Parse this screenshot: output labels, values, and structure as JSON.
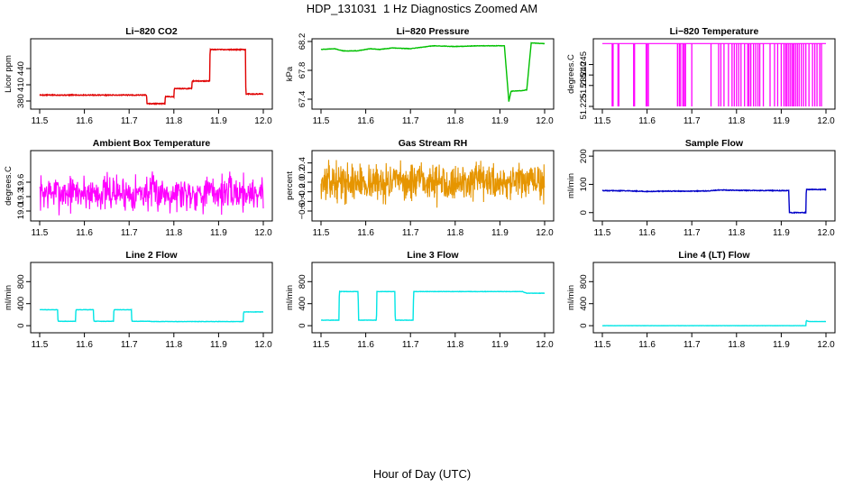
{
  "figure": {
    "title": "HDP_131031  1 Hz Diagnostics Zoomed AM",
    "xlabel": "Hour of Day (UTC)"
  },
  "chart_data": [
    {
      "type": "line",
      "title": "Li−820 CO2",
      "ylabel": "Licor ppm",
      "xlim": [
        11.5,
        12.0
      ],
      "ylim": [
        370,
        490
      ],
      "xticks": [
        "11.5",
        "11.6",
        "11.7",
        "11.8",
        "11.9",
        "12.0"
      ],
      "yticks": [
        {
          "v": 380,
          "label": "380"
        },
        {
          "v": 410,
          "label": "410"
        },
        {
          "v": 440,
          "label": "440"
        }
      ],
      "color": "#e00000",
      "noise": 0.8,
      "series": [
        {
          "x": [
            11.5,
            11.739,
            11.74,
            11.78,
            11.781,
            11.8,
            11.801,
            11.84,
            11.841,
            11.88,
            11.881,
            11.96,
            11.961,
            12.0
          ],
          "y": [
            391,
            391,
            375,
            375,
            388,
            388,
            403,
            403,
            417,
            417,
            475,
            475,
            393,
            393
          ]
        }
      ]
    },
    {
      "type": "line",
      "title": "Li−820 Pressure",
      "ylabel": "kPa",
      "xlim": [
        11.5,
        12.0
      ],
      "ylim": [
        67.3,
        68.2
      ],
      "xticks": [
        "11.5",
        "11.6",
        "11.7",
        "11.8",
        "11.9",
        "12.0"
      ],
      "yticks": [
        {
          "v": 67.4,
          "label": "67.4"
        },
        {
          "v": 67.8,
          "label": "67.8"
        },
        {
          "v": 68.2,
          "label": "68.2"
        }
      ],
      "color": "#00c000",
      "noise": 0.003,
      "series": [
        {
          "x": [
            11.5,
            11.53,
            11.55,
            11.58,
            11.61,
            11.63,
            11.66,
            11.7,
            11.75,
            11.8,
            11.85,
            11.91,
            11.92,
            11.925,
            11.95,
            11.96,
            11.97,
            12.0
          ],
          "y": [
            68.09,
            68.1,
            68.07,
            68.07,
            68.1,
            68.09,
            68.11,
            68.1,
            68.14,
            68.13,
            68.14,
            68.14,
            67.37,
            67.51,
            67.52,
            67.53,
            68.18,
            68.17
          ]
        }
      ]
    },
    {
      "type": "line",
      "title": "Li−820 Temperature",
      "ylabel": "degrees.C",
      "xlim": [
        11.5,
        12.0
      ],
      "ylim": [
        51.225,
        51.256
      ],
      "xticks": [
        "11.5",
        "11.6",
        "11.7",
        "11.8",
        "11.9",
        "12.0"
      ],
      "yticks": [
        {
          "v": 51.225,
          "label": "51.225"
        },
        {
          "v": 51.235,
          "label": "51.235"
        },
        {
          "v": 51.24,
          "label": "51.240"
        },
        {
          "v": 51.245,
          "label": "51.245"
        }
      ],
      "color": "#ff00ff",
      "base": 51.255,
      "drop": 51.225,
      "spikes": [
        11.522,
        11.524,
        11.535,
        11.537,
        11.57,
        11.572,
        11.598,
        11.6,
        11.603,
        11.668,
        11.672,
        11.675,
        11.68,
        11.683,
        11.686,
        11.7,
        11.743,
        11.76,
        11.765,
        11.772,
        11.782,
        11.79,
        11.795,
        11.8,
        11.805,
        11.81,
        11.818,
        11.825,
        11.828,
        11.832,
        11.838,
        11.843,
        11.848,
        11.852,
        11.86,
        11.875,
        11.885,
        11.892,
        11.9,
        11.906,
        11.91,
        11.913,
        11.917,
        11.921,
        11.925,
        11.928,
        11.932,
        11.936,
        11.94,
        11.945,
        11.95,
        11.955,
        11.962,
        11.97,
        11.975,
        11.98,
        11.986,
        11.99
      ]
    },
    {
      "type": "line",
      "title": "Ambient Box Temperature",
      "ylabel": "degrees.C",
      "xlim": [
        11.5,
        12.0
      ],
      "ylim": [
        18.85,
        20.2
      ],
      "xticks": [
        "11.5",
        "11.6",
        "11.7",
        "11.8",
        "11.9",
        "12.0"
      ],
      "yticks": [
        {
          "v": 19.0,
          "label": "19.0"
        },
        {
          "v": 19.3,
          "label": "19.3"
        },
        {
          "v": 19.6,
          "label": "19.6"
        }
      ],
      "color": "#ff00ff",
      "noise_center": 19.38,
      "noise_amp": 0.55,
      "noise_count": 520,
      "noise_seed": 7
    },
    {
      "type": "line",
      "title": "Gas Stream RH",
      "ylabel": "percent",
      "xlim": [
        11.5,
        12.0
      ],
      "ylim": [
        -0.75,
        0.6
      ],
      "xticks": [
        "11.5",
        "11.6",
        "11.7",
        "11.8",
        "11.9",
        "12.0"
      ],
      "yticks": [
        {
          "v": -0.6,
          "label": "−0.6"
        },
        {
          "v": -0.4,
          "label": "−0.4"
        },
        {
          "v": -0.2,
          "label": "−0.2"
        },
        {
          "v": 0.0,
          "label": "0.0"
        },
        {
          "v": 0.2,
          "label": "0.2"
        },
        {
          "v": 0.4,
          "label": "0.4"
        }
      ],
      "color": "#e69500",
      "noise_center": 0.0,
      "noise_amp": 0.55,
      "noise_count": 700,
      "noise_seed": 13
    },
    {
      "type": "line",
      "title": "Sample Flow",
      "ylabel": "ml/min",
      "xlim": [
        11.5,
        12.0
      ],
      "ylim": [
        -20,
        210
      ],
      "xticks": [
        "11.5",
        "11.6",
        "11.7",
        "11.8",
        "11.9",
        "12.0"
      ],
      "yticks": [
        {
          "v": 0,
          "label": "0"
        },
        {
          "v": 100,
          "label": "100"
        },
        {
          "v": 200,
          "label": "200"
        }
      ],
      "color": "#0000c8",
      "noise": 1.2,
      "series": [
        {
          "x": [
            11.5,
            11.56,
            11.6,
            11.65,
            11.7,
            11.74,
            11.76,
            11.8,
            11.85,
            11.917,
            11.918,
            11.955,
            11.956,
            12.0
          ],
          "y": [
            78,
            77,
            75,
            76,
            76,
            77,
            80,
            79,
            78,
            78,
            0,
            0,
            82,
            82
          ]
        }
      ]
    },
    {
      "type": "line",
      "title": "Line 2 Flow",
      "ylabel": "ml/min",
      "xlim": [
        11.5,
        12.0
      ],
      "ylim": [
        -80,
        1100
      ],
      "xticks": [
        "11.5",
        "11.6",
        "11.7",
        "11.8",
        "11.9",
        "12.0"
      ],
      "yticks": [
        {
          "v": 0,
          "label": "0"
        },
        {
          "v": 400,
          "label": "400"
        },
        {
          "v": 800,
          "label": "800"
        }
      ],
      "color": "#00e5e5",
      "noise": 3,
      "series": [
        {
          "x": [
            11.5,
            11.54,
            11.541,
            11.58,
            11.581,
            11.62,
            11.621,
            11.665,
            11.666,
            11.705,
            11.706,
            11.745,
            11.75,
            11.955,
            11.956,
            12.0
          ],
          "y": [
            290,
            290,
            80,
            80,
            290,
            290,
            80,
            80,
            290,
            290,
            80,
            80,
            75,
            75,
            250,
            250
          ]
        }
      ]
    },
    {
      "type": "line",
      "title": "Line 3 Flow",
      "ylabel": "ml/min",
      "xlim": [
        11.5,
        12.0
      ],
      "ylim": [
        -80,
        1100
      ],
      "xticks": [
        "11.5",
        "11.6",
        "11.7",
        "11.8",
        "11.9",
        "12.0"
      ],
      "yticks": [
        {
          "v": 0,
          "label": "0"
        },
        {
          "v": 400,
          "label": "400"
        },
        {
          "v": 800,
          "label": "800"
        }
      ],
      "color": "#00e5e5",
      "noise": 3,
      "series": [
        {
          "x": [
            11.5,
            11.54,
            11.541,
            11.583,
            11.584,
            11.624,
            11.625,
            11.665,
            11.666,
            11.706,
            11.707,
            11.95,
            11.96,
            12.0
          ],
          "y": [
            100,
            100,
            620,
            620,
            100,
            100,
            620,
            620,
            100,
            100,
            620,
            620,
            590,
            590
          ]
        }
      ]
    },
    {
      "type": "line",
      "title": "Line 4 (LT) Flow",
      "ylabel": "ml/min",
      "xlim": [
        11.5,
        12.0
      ],
      "ylim": [
        -80,
        1100
      ],
      "xticks": [
        "11.5",
        "11.6",
        "11.7",
        "11.8",
        "11.9",
        "12.0"
      ],
      "yticks": [
        {
          "v": 0,
          "label": "0"
        },
        {
          "v": 400,
          "label": "400"
        },
        {
          "v": 800,
          "label": "800"
        }
      ],
      "color": "#00e5e5",
      "noise": 1,
      "series": [
        {
          "x": [
            11.5,
            11.955,
            11.956,
            11.96,
            11.965,
            12.0
          ],
          "y": [
            0,
            0,
            95,
            80,
            75,
            75
          ]
        }
      ]
    }
  ]
}
